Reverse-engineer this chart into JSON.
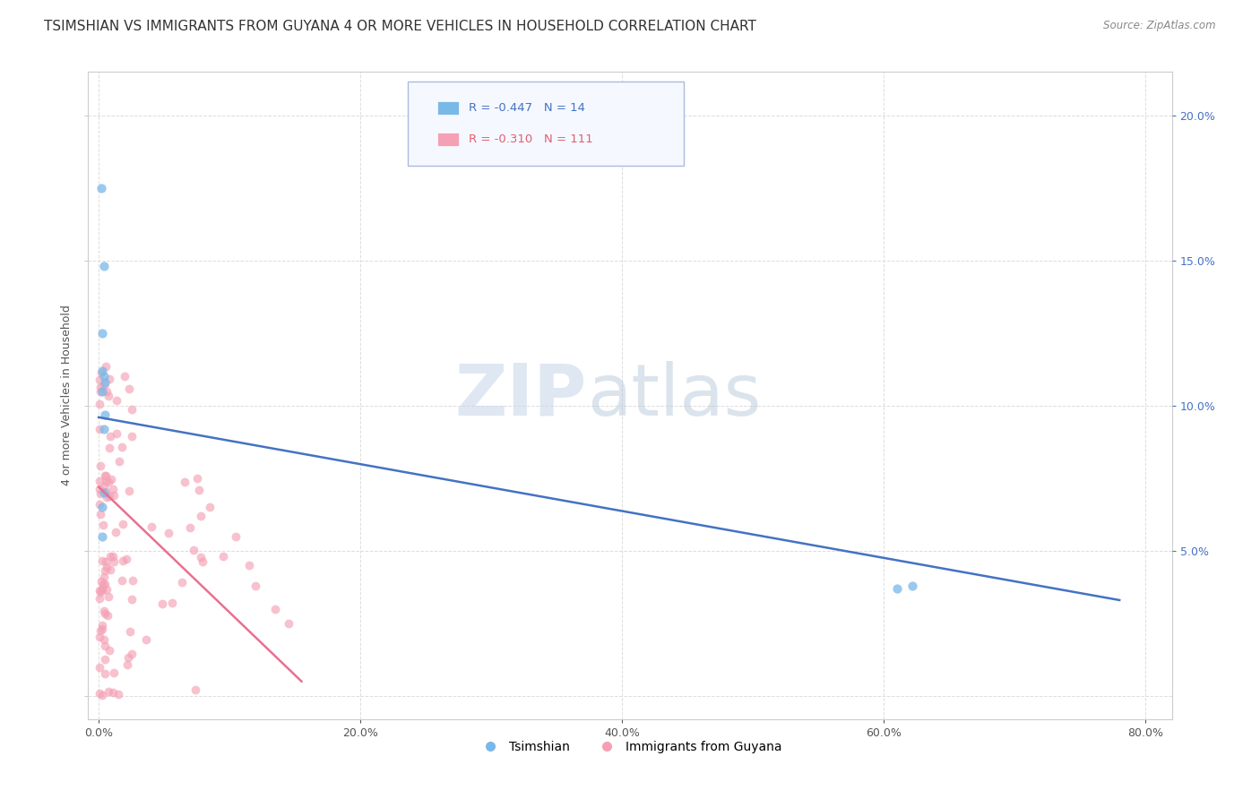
{
  "title": "TSIMSHIAN VS IMMIGRANTS FROM GUYANA 4 OR MORE VEHICLES IN HOUSEHOLD CORRELATION CHART",
  "source": "Source: ZipAtlas.com",
  "ylabel": "4 or more Vehicles in Household",
  "xlabel": "",
  "watermark_zip": "ZIP",
  "watermark_atlas": "atlas",
  "series": [
    {
      "name": "Tsimshian",
      "color": "#7ab8e8",
      "R": -0.447,
      "N": 14,
      "x": [
        0.002,
        0.004,
        0.003,
        0.005,
        0.003,
        0.004,
        0.003,
        0.005,
        0.004,
        0.003,
        0.622,
        0.61,
        0.004,
        0.003
      ],
      "y": [
        0.175,
        0.148,
        0.125,
        0.108,
        0.105,
        0.11,
        0.112,
        0.097,
        0.092,
        0.055,
        0.038,
        0.037,
        0.07,
        0.065
      ]
    },
    {
      "name": "Immigrants from Guyana",
      "color": "#f4a0b5",
      "R": -0.31,
      "N": 111
    }
  ],
  "xlim": [
    -0.008,
    0.82
  ],
  "ylim": [
    -0.008,
    0.215
  ],
  "xticks": [
    0.0,
    0.2,
    0.4,
    0.6,
    0.8
  ],
  "xtick_labels": [
    "0.0%",
    "20.0%",
    "40.0%",
    "60.0%",
    "80.0%"
  ],
  "yticks_left": [
    0.0,
    0.05,
    0.1,
    0.15,
    0.2
  ],
  "yticks_right": [
    0.05,
    0.1,
    0.15,
    0.2
  ],
  "ytick_labels_right": [
    "5.0%",
    "10.0%",
    "15.0%",
    "20.0%"
  ],
  "grid_color": "#dddddd",
  "background_color": "#ffffff",
  "title_fontsize": 11,
  "axis_fontsize": 9,
  "tick_fontsize": 9,
  "blue_line": [
    0.0,
    0.096,
    0.78,
    0.033
  ],
  "pink_line": [
    0.0,
    0.072,
    0.155,
    0.005
  ],
  "legend_R1": "R = -0.447",
  "legend_N1": "N = 14",
  "legend_R2": "R = -0.310",
  "legend_N2": "N = 111"
}
